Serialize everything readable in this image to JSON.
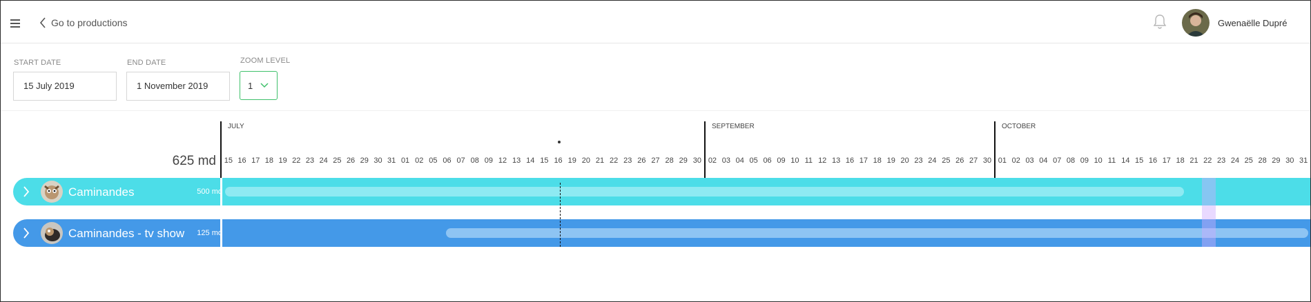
{
  "header": {
    "back_label": "Go to productions",
    "user_name": "Gwenaëlle Dupré",
    "icons": [
      "menu-icon",
      "chevron-left-icon",
      "bell-icon",
      "user-avatar"
    ]
  },
  "filters": {
    "start_date_label": "START DATE",
    "start_date_value": "15 July 2019",
    "end_date_label": "END DATE",
    "end_date_value": "1 November 2019",
    "zoom_label": "ZOOM LEVEL",
    "zoom_value": "1"
  },
  "timeline": {
    "total_md": "625 md",
    "months": [
      "JULY",
      "SEPTEMBER",
      "OCTOBER"
    ],
    "days_july": [
      "15",
      "16",
      "17",
      "18",
      "19",
      "22",
      "23",
      "24",
      "25",
      "26",
      "29",
      "30",
      "31"
    ],
    "days_august": [
      "01",
      "02",
      "05",
      "06",
      "07",
      "08",
      "09",
      "12",
      "13",
      "14",
      "15",
      "16",
      "19",
      "20",
      "21",
      "22",
      "23",
      "26",
      "27",
      "28",
      "29",
      "30"
    ],
    "days_september": [
      "02",
      "03",
      "04",
      "05",
      "06",
      "09",
      "10",
      "11",
      "12",
      "13",
      "16",
      "17",
      "18",
      "19",
      "20",
      "23",
      "24",
      "25",
      "26",
      "27",
      "30"
    ],
    "days_october": [
      "01",
      "02",
      "03",
      "04",
      "07",
      "08",
      "09",
      "10",
      "11",
      "14",
      "15",
      "16",
      "17",
      "18",
      "21",
      "22",
      "23",
      "24",
      "25",
      "28",
      "29",
      "30",
      "31"
    ]
  },
  "productions": [
    {
      "name": "Caminandes",
      "md": "500 md",
      "color": "#4cdde8",
      "bar_color": "#8eeaf2"
    },
    {
      "name": "Caminandes - tv show",
      "md": "125 md",
      "color": "#4499e8",
      "bar_color": "#8ec4f3"
    }
  ],
  "colors": {
    "accent_green": "#3ec06a",
    "today_marker": "#111111",
    "highlight": "#d9b8ff"
  }
}
